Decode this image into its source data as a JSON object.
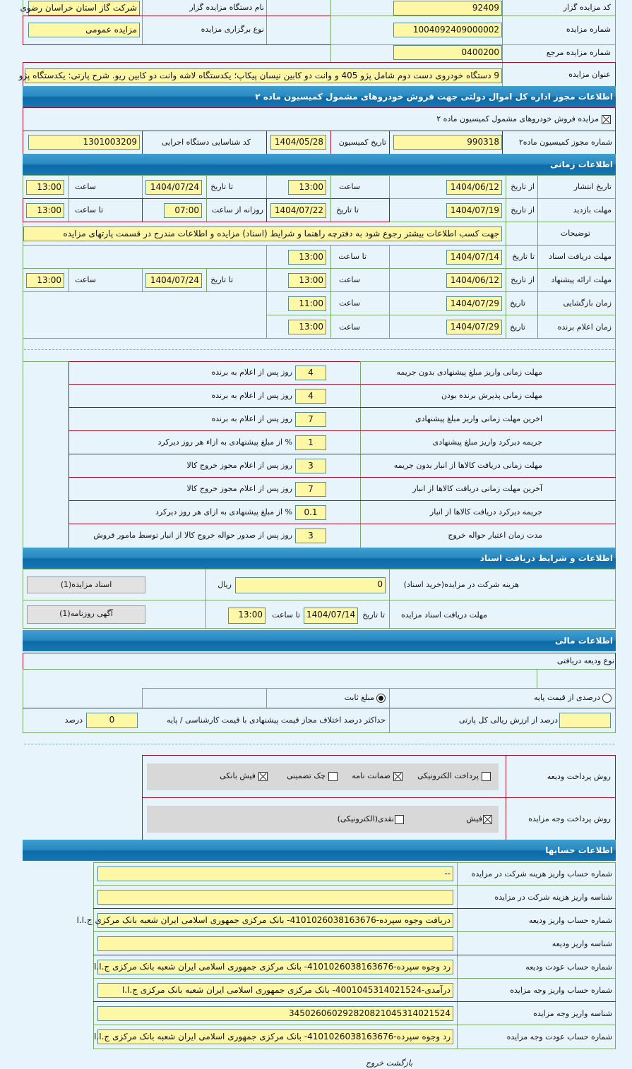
{
  "general": {
    "code_label": "کد مزایده گزار",
    "code": "92409",
    "org_label": "نام دستگاه مزایده گزار",
    "org": "شرکت گاز استان خراسان رضوی",
    "number_label": "شماره مزایده",
    "number": "1004092409000002",
    "type_label": "نوع برگزاری مزایده",
    "type": "مزایده عمومی",
    "ref_label": "شماره مزایده مرجع",
    "ref": "0400200",
    "title_label": "عنوان مزایده",
    "title": "9 دستگاه خودروی دست دوم شامل پژو 405 و وانت دو کابین نیسان پیکاپ؛ یکدستگاه لاشه وانت دو کابین ریو. شرح پارتی: یکدستگاه پژو"
  },
  "permit": {
    "header": "اطلاعات مجوز اداره کل اموال دولتی جهت فروش خودروهای مشمول کمیسیون ماده ۲",
    "checkbox_label": "مزایده فروش خودروهای مشمول کمیسیون ماده ۲",
    "checked": true,
    "permit_no_label": "شماره مجوز کمیسیون ماده۲",
    "permit_no": "990318",
    "date_label": "تاریخ کمیسیون",
    "date": "1404/05/28",
    "exec_label": "کد شناسایی دستگاه اجرایی",
    "exec": "1301003209"
  },
  "timing": {
    "header": "اطلاعات زمانی",
    "publish": {
      "label": "تاریخ انتشار",
      "from_label": "از تاریخ",
      "from": "1404/06/12",
      "time1_label": "ساعت",
      "time1": "13:00",
      "to_label": "تا تاریخ",
      "to": "1404/07/24",
      "time2_label": "ساعت",
      "time2": "13:00"
    },
    "visit": {
      "label": "مهلت بازدید",
      "from_label": "از تاریخ",
      "from": "1404/07/19",
      "to_label": "تا تاریخ",
      "to": "1404/07/22",
      "daily_label": "روزانه از ساعت",
      "daily": "07:00",
      "until_label": "تا ساعت",
      "until": "13:00"
    },
    "notes_label": "توضیحات",
    "notes": "جهت کسب اطلاعات بیشتر رجوع شود به دفترچه راهنما و شرایط (اسناد) مزایده و اطلاعات مندرج در قسمت پارتهای مزایده",
    "docs": {
      "label": "مهلت دریافت اسناد",
      "to_label": "تا تاریخ",
      "to": "1404/07/14",
      "time_label": "تا ساعت",
      "time": "13:00"
    },
    "offer": {
      "label": "مهلت ارائه پیشنهاد",
      "from_label": "از تاریخ",
      "from": "1404/06/12",
      "time1_label": "ساعت",
      "time1": "13:00",
      "to_label": "تا تاریخ",
      "to": "1404/07/24",
      "time2_label": "ساعت",
      "time2": "13:00"
    },
    "opening": {
      "label": "زمان بازگشایی",
      "date_label": "تاریخ",
      "date": "1404/07/29",
      "time_label": "ساعت",
      "time": "11:00"
    },
    "winner": {
      "label": "زمان اعلام برنده",
      "date_label": "تاریخ",
      "date": "1404/07/29",
      "time_label": "ساعت",
      "time": "13:00"
    }
  },
  "deadlines": [
    {
      "label": "مهلت زمانی واریز مبلغ پیشنهادی بدون جریمه",
      "value": "4",
      "unit": "روز پس از اعلام به برنده"
    },
    {
      "label": "مهلت زمانی پذیرش برنده بودن",
      "value": "4",
      "unit": "روز پس از اعلام به برنده"
    },
    {
      "label": "اخرین مهلت زمانی واریز مبلغ پیشنهادی",
      "value": "7",
      "unit": "روز پس از اعلام به برنده"
    },
    {
      "label": "جریمه دیرکرد واریز مبلغ پیشنهادی",
      "value": "1",
      "unit": "% از مبلغ پیشنهادی به ازاء هر روز دیرکرد"
    },
    {
      "label": "مهلت زمانی دریافت کالاها از انبار بدون جریمه",
      "value": "3",
      "unit": "روز پس از اعلام مجوز خروج کالا"
    },
    {
      "label": "آخرین مهلت زمانی دریافت کالاها از انبار",
      "value": "7",
      "unit": "روز پس از اعلام مجوز خروج کالا"
    },
    {
      "label": "جریمه دیرکرد دریافت کالاها از انبار",
      "value": "0.1",
      "unit": "% از مبلغ پیشنهادی به ازای هر روز دیرکرد"
    },
    {
      "label": "مدت زمان اعتبار حواله خروج",
      "value": "3",
      "unit": "روز پس از صدور حواله خروج کالا از انبار توسط مامور فروش"
    }
  ],
  "documents": {
    "header": "اطلاعات و شرایط دریافت اسناد",
    "fee_label": "هزینه شرکت در مزایده(خرید اسناد)",
    "fee": "0",
    "fee_unit": "ریال",
    "docs_button": "اسناد مزایده(1)",
    "deadline_label": "مهلت دریافت اسناد مزایده",
    "to_label": "تا تاریخ",
    "to": "1404/07/14",
    "time_label": "تا ساعت",
    "time": "13:00",
    "ad_button": "آگهی روزنامه(1)"
  },
  "finance": {
    "header": "اطلاعات مالی",
    "deposit_type_label": "نوع ودیعه دریافتی",
    "radio_percent": "درصدی از قیمت پایه",
    "radio_fixed": "مبلغ ثابت",
    "selected": "fixed",
    "percent_value": "",
    "percent_label": "درصد از ارزش ریالی کل پارتی",
    "max_diff_label": "حداکثر درصد اختلاف مجاز قیمت پیشنهادی با قیمت کارشناسی / پایه",
    "max_diff": "0",
    "max_diff_unit": "درصد",
    "deposit_method_label": "روش پرداخت ودیعه",
    "deposit_methods": [
      {
        "label": "پرداخت الکترونیکی",
        "checked": false
      },
      {
        "label": "ضمانت نامه",
        "checked": true
      },
      {
        "label": "چک تضمینی",
        "checked": false
      },
      {
        "label": "فیش بانکی",
        "checked": true
      }
    ],
    "payment_method_label": "روش پرداخت وجه مزایده",
    "payment_methods": [
      {
        "label": "فیش",
        "checked": true
      },
      {
        "label": "نقدی(الکترونیکی)",
        "checked": false
      }
    ]
  },
  "accounts": {
    "header": "اطلاعات حسابها",
    "rows": [
      {
        "label": "شماره حساب واریز هزینه شرکت در مزایده",
        "value": "--"
      },
      {
        "label": "شناسه واریز هزینه شرکت در مزایده",
        "value": ""
      },
      {
        "label": "شماره حساب واریز ودیعه",
        "value": "دریافت وجوه سپرده-4101026038163676- بانک مرکزی جمهوری اسلامی ایران شعبه بانک مرکزی ج.ا.ا"
      },
      {
        "label": "شناسه واریز ودیعه",
        "value": ""
      },
      {
        "label": "شماره حساب عودت ودیعه",
        "value": "رد وجوه سپرده-4101026038163676- بانک مرکزی جمهوری اسلامی ایران شعبه بانک مرکزی ج.ا.ا"
      },
      {
        "label": "شماره حساب واریز وجه مزایده",
        "value": "درآمدی-4001045314021524- بانک مرکزی جمهوری اسلامی ایران شعبه بانک مرکزی ج.ا.ا"
      },
      {
        "label": "شناسه واریز وجه مزایده",
        "value": "345026060292820821045314021524"
      },
      {
        "label": "شماره حساب عودت وجه مزایده",
        "value": "رد وجوه سپرده-4101026038163676- بانک مرکزی جمهوری اسلامی ایران شعبه بانک مرکزی ج.ا.ا"
      }
    ]
  },
  "footer": {
    "back": "بازگشت",
    "exit": "خروج"
  }
}
